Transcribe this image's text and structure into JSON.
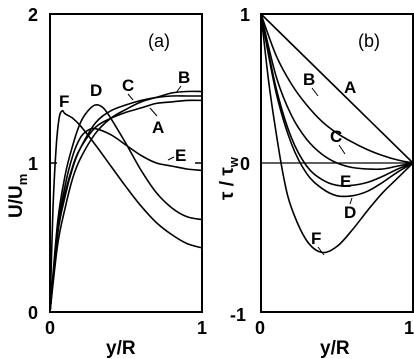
{
  "chart_data": [
    {
      "type": "line",
      "panel_label": "(a)",
      "xlabel": "y/R",
      "ylabel": "U/U_m",
      "ylabel_main": "U/U",
      "ylabel_sub": "m",
      "xlim": [
        0,
        1
      ],
      "ylim": [
        0,
        2
      ],
      "x_ticks": [
        0,
        1
      ],
      "y_ticks": [
        0,
        1,
        2
      ],
      "series": [
        {
          "name": "A",
          "x": [
            0,
            0.05,
            0.1,
            0.15,
            0.2,
            0.3,
            0.4,
            0.5,
            0.6,
            0.7,
            0.8,
            0.9,
            1.0
          ],
          "y": [
            0,
            0.55,
            0.8,
            0.98,
            1.1,
            1.24,
            1.3,
            1.34,
            1.37,
            1.4,
            1.41,
            1.42,
            1.42
          ]
        },
        {
          "name": "B",
          "x": [
            0,
            0.05,
            0.1,
            0.15,
            0.2,
            0.3,
            0.4,
            0.5,
            0.6,
            0.7,
            0.8,
            0.9,
            1.0
          ],
          "y": [
            0,
            0.45,
            0.7,
            0.9,
            1.03,
            1.2,
            1.3,
            1.36,
            1.41,
            1.44,
            1.47,
            1.48,
            1.48
          ]
        },
        {
          "name": "C",
          "x": [
            0,
            0.05,
            0.1,
            0.15,
            0.2,
            0.3,
            0.4,
            0.5,
            0.6,
            0.7,
            0.8,
            0.9,
            1.0
          ],
          "y": [
            0,
            0.52,
            0.78,
            0.97,
            1.1,
            1.27,
            1.35,
            1.39,
            1.42,
            1.44,
            1.45,
            1.45,
            1.45
          ]
        },
        {
          "name": "D",
          "x": [
            0,
            0.05,
            0.1,
            0.15,
            0.2,
            0.25,
            0.3,
            0.35,
            0.4,
            0.5,
            0.6,
            0.7,
            0.8,
            0.9,
            1.0
          ],
          "y": [
            0,
            0.6,
            0.92,
            1.12,
            1.27,
            1.35,
            1.39,
            1.37,
            1.3,
            1.13,
            0.95,
            0.8,
            0.7,
            0.64,
            0.62
          ]
        },
        {
          "name": "E",
          "x": [
            0,
            0.05,
            0.1,
            0.15,
            0.2,
            0.25,
            0.3,
            0.4,
            0.5,
            0.6,
            0.7,
            0.8,
            0.9,
            1.0
          ],
          "y": [
            0,
            0.55,
            0.85,
            1.05,
            1.17,
            1.22,
            1.23,
            1.19,
            1.12,
            1.05,
            1.0,
            0.98,
            0.96,
            0.95
          ]
        },
        {
          "name": "F",
          "x": [
            0,
            0.02,
            0.04,
            0.06,
            0.08,
            0.1,
            0.15,
            0.2,
            0.3,
            0.4,
            0.5,
            0.6,
            0.7,
            0.8,
            0.9,
            1.0
          ],
          "y": [
            0,
            0.7,
            1.1,
            1.3,
            1.35,
            1.33,
            1.3,
            1.25,
            1.12,
            0.98,
            0.84,
            0.71,
            0.6,
            0.52,
            0.46,
            0.43
          ]
        }
      ]
    },
    {
      "type": "line",
      "panel_label": "(b)",
      "xlabel": "y/R",
      "ylabel": "τ/τ_w",
      "ylabel_main": "τ / τ",
      "ylabel_sub": "w",
      "xlim": [
        0,
        1
      ],
      "ylim": [
        -1,
        1
      ],
      "x_ticks": [
        0,
        1
      ],
      "y_ticks": [
        -1,
        0,
        1
      ],
      "series": [
        {
          "name": "A",
          "x": [
            0,
            1
          ],
          "y": [
            1,
            0
          ]
        },
        {
          "name": "B",
          "x": [
            0,
            0.1,
            0.2,
            0.3,
            0.4,
            0.5,
            0.6,
            0.7,
            0.8,
            0.9,
            1.0
          ],
          "y": [
            1,
            0.72,
            0.53,
            0.39,
            0.28,
            0.2,
            0.14,
            0.09,
            0.05,
            0.02,
            0
          ]
        },
        {
          "name": "C",
          "x": [
            0,
            0.1,
            0.2,
            0.3,
            0.4,
            0.5,
            0.6,
            0.7,
            0.8,
            0.9,
            1.0
          ],
          "y": [
            1,
            0.58,
            0.32,
            0.16,
            0.06,
            0.0,
            -0.03,
            -0.04,
            -0.04,
            -0.02,
            0
          ]
        },
        {
          "name": "D",
          "x": [
            0,
            0.1,
            0.2,
            0.3,
            0.4,
            0.5,
            0.6,
            0.7,
            0.8,
            0.9,
            1.0
          ],
          "y": [
            1,
            0.47,
            0.13,
            -0.07,
            -0.17,
            -0.22,
            -0.22,
            -0.19,
            -0.13,
            -0.06,
            0
          ]
        },
        {
          "name": "E",
          "x": [
            0,
            0.1,
            0.2,
            0.3,
            0.4,
            0.5,
            0.6,
            0.7,
            0.8,
            0.9,
            1.0
          ],
          "y": [
            1,
            0.5,
            0.17,
            -0.02,
            -0.11,
            -0.15,
            -0.15,
            -0.13,
            -0.09,
            -0.04,
            0
          ]
        },
        {
          "name": "F",
          "x": [
            0,
            0.05,
            0.1,
            0.15,
            0.2,
            0.3,
            0.4,
            0.5,
            0.6,
            0.7,
            0.8,
            0.9,
            1.0
          ],
          "y": [
            1,
            0.55,
            0.2,
            -0.1,
            -0.3,
            -0.52,
            -0.6,
            -0.56,
            -0.45,
            -0.32,
            -0.2,
            -0.1,
            0
          ]
        }
      ]
    }
  ]
}
